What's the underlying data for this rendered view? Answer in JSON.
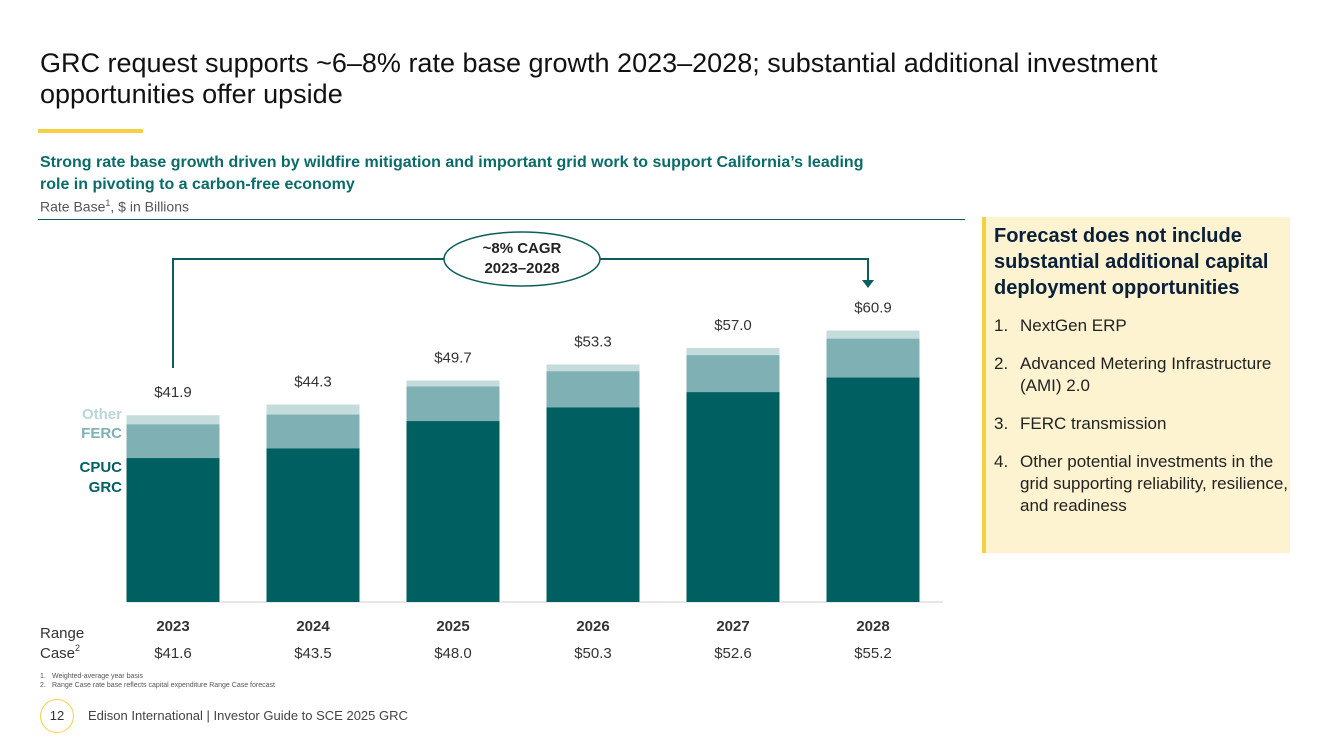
{
  "title": "GRC request supports ~6–8% rate base growth 2023–2028; substantial additional investment opportunities offer upside",
  "subtitle": "Strong rate base growth driven by wildfire mitigation and important grid work to support California’s leading role in pivoting to a carbon-free economy",
  "unit_note": {
    "text": "Rate Base",
    "sup": "1",
    "rest": ", $ in Billions"
  },
  "chart_data": {
    "type": "stacked_bar",
    "categories": [
      "2023",
      "2024",
      "2025",
      "2026",
      "2027",
      "2028"
    ],
    "series": [
      {
        "name": "CPUC GRC",
        "color": "#005f61",
        "values": [
          32.3,
          34.5,
          40.6,
          43.7,
          47.1,
          50.4
        ]
      },
      {
        "name": "FERC",
        "color": "#7fb0b3",
        "values": [
          7.6,
          7.6,
          7.8,
          8.1,
          8.3,
          8.7
        ]
      },
      {
        "name": "Other",
        "color": "#c5dcdd",
        "values": [
          2.0,
          2.2,
          1.3,
          1.5,
          1.6,
          1.8
        ]
      }
    ],
    "totals": [
      41.9,
      44.3,
      49.7,
      53.3,
      57.0,
      60.9
    ],
    "total_labels": [
      "$41.9",
      "$44.3",
      "$49.7",
      "$53.3",
      "$57.0",
      "$60.9"
    ],
    "ylim": [
      0,
      70
    ],
    "annotation": {
      "line1": "~8% CAGR",
      "line2": "2023–2028"
    },
    "range_case": {
      "label1": "Range",
      "label2": "Case",
      "sup": "2",
      "values": [
        41.6,
        43.5,
        48.0,
        50.3,
        52.6,
        55.2
      ],
      "value_labels": [
        "$41.6",
        "$43.5",
        "$48.0",
        "$50.3",
        "$52.6",
        "$55.2"
      ]
    }
  },
  "sidebar": {
    "heading": "Forecast does not include substantial additional capital deployment opportunities",
    "items": [
      {
        "n": "1.",
        "text": "NextGen ERP"
      },
      {
        "n": "2.",
        "text": "Advanced Metering Infrastructure (AMI) 2.0"
      },
      {
        "n": "3.",
        "text": "FERC transmission"
      },
      {
        "n": "4.",
        "text": "Other potential investments in the grid supporting reliability, resilience, and readiness"
      }
    ]
  },
  "footnotes": [
    {
      "n": "1.",
      "text": "Weighted-average year basis"
    },
    {
      "n": "2.",
      "text": "Range Case rate base reflects capital expenditure Range Case forecast"
    }
  ],
  "footer": {
    "page": "12",
    "text": "Edison International | Investor Guide to SCE 2025 GRC"
  }
}
